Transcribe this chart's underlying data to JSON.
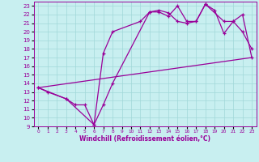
{
  "xlabel": "Windchill (Refroidissement éolien,°C)",
  "bg_color": "#c8eff0",
  "grid_color": "#a0d8d8",
  "line_color": "#990099",
  "xlim": [
    -0.5,
    23.5
  ],
  "ylim": [
    9,
    23.5
  ],
  "xticks": [
    0,
    1,
    2,
    3,
    4,
    5,
    6,
    7,
    8,
    9,
    10,
    11,
    12,
    13,
    14,
    15,
    16,
    17,
    18,
    19,
    20,
    21,
    22,
    23
  ],
  "yticks": [
    9,
    10,
    11,
    12,
    13,
    14,
    15,
    16,
    17,
    18,
    19,
    20,
    21,
    22,
    23
  ],
  "line1_x": [
    0,
    1,
    3,
    4,
    5,
    6,
    7,
    8,
    12,
    13,
    14,
    15,
    16,
    17,
    18,
    19,
    20,
    21,
    22,
    23
  ],
  "line1_y": [
    13.5,
    13.0,
    12.2,
    11.5,
    11.5,
    9.2,
    11.5,
    14.0,
    22.3,
    22.5,
    22.2,
    21.2,
    21.0,
    21.2,
    23.2,
    22.5,
    19.8,
    21.2,
    20.0,
    18.0
  ],
  "line2_x": [
    0,
    3,
    6,
    7,
    8,
    11,
    12,
    13,
    14,
    15,
    16,
    17,
    18,
    20,
    21,
    22,
    23
  ],
  "line2_y": [
    13.5,
    12.2,
    9.2,
    17.5,
    20.0,
    21.2,
    22.3,
    22.3,
    21.8,
    23.0,
    21.2,
    21.2,
    23.2,
    21.2,
    21.2,
    22.0,
    17.0
  ],
  "line3_x": [
    0,
    23
  ],
  "line3_y": [
    13.5,
    17.0
  ]
}
